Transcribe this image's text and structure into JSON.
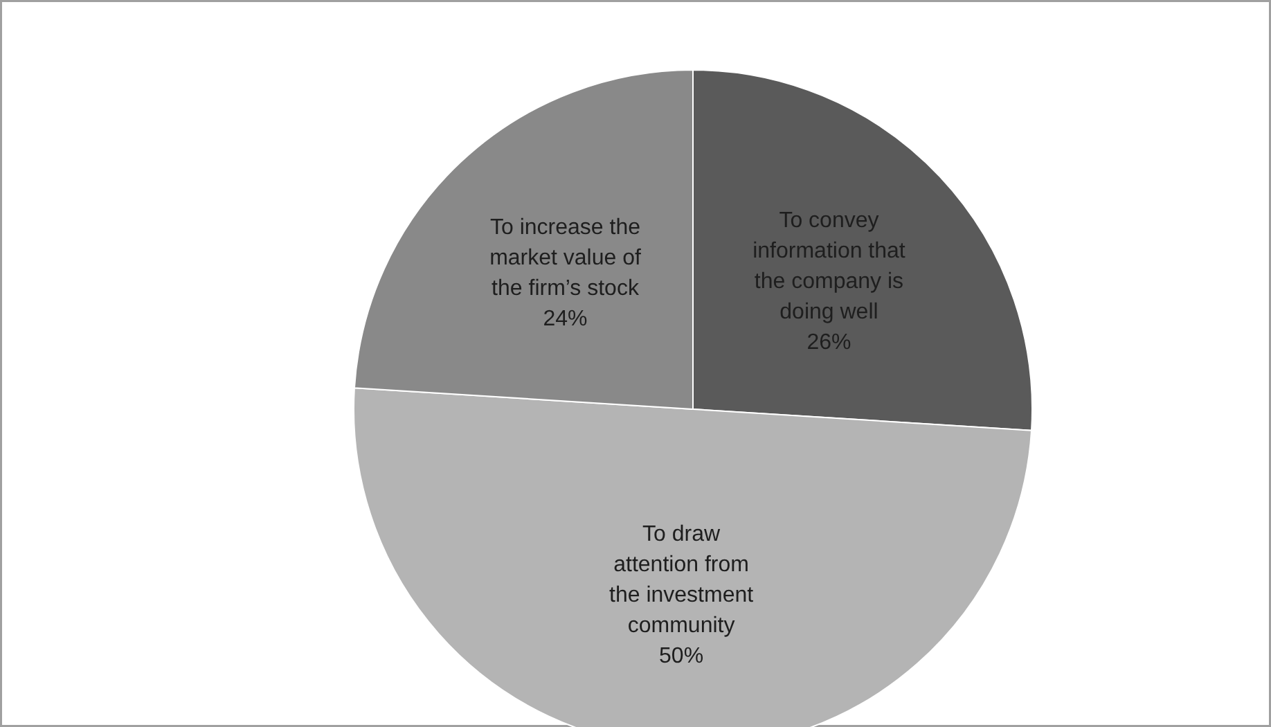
{
  "chart_data": {
    "type": "pie",
    "categories": [
      "To convey information that the company is doing well",
      "To draw attention from the investment community",
      "To increase the market value of the firm’s stock"
    ],
    "values": [
      26,
      50,
      24
    ],
    "colors": [
      "#5a5a5a",
      "#b4b4b4",
      "#898989"
    ],
    "value_labels": [
      "26%",
      "50%",
      "24%"
    ],
    "legend": false
  }
}
